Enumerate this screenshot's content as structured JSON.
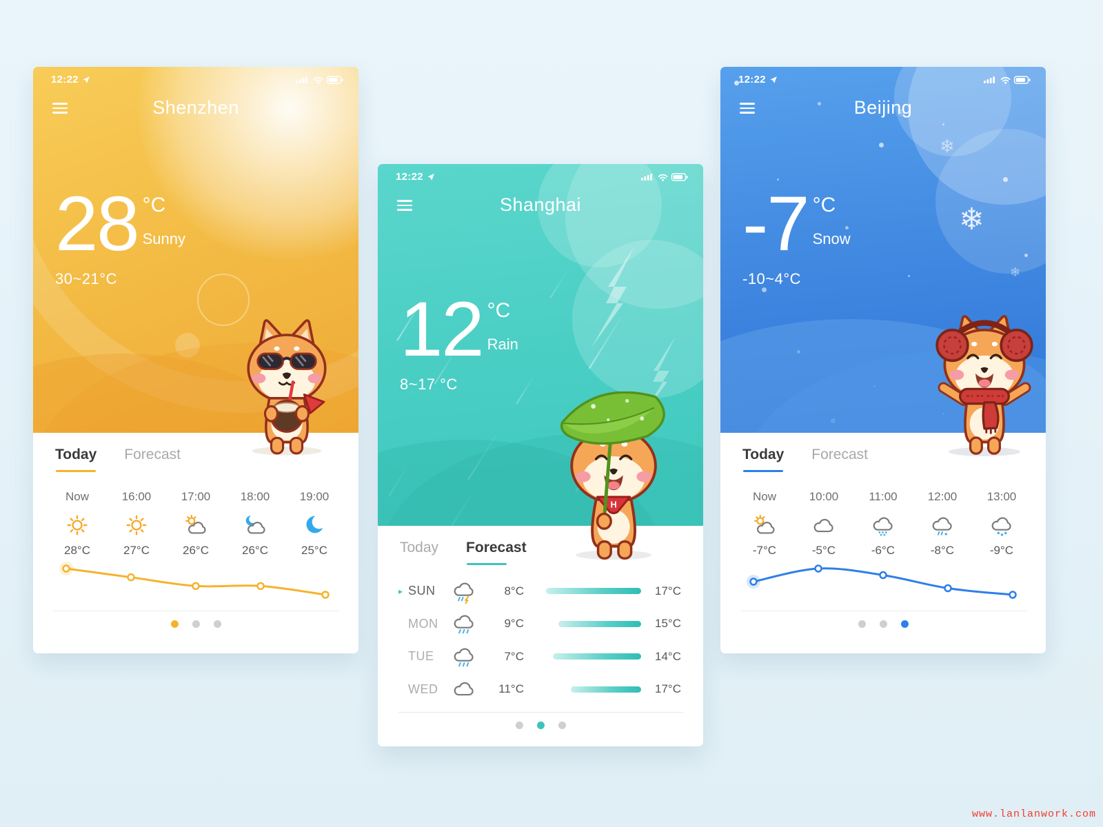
{
  "watermark": "www.lanlanwork.com",
  "phones": [
    {
      "city": "Shenzhen",
      "status": {
        "time": "12:22"
      },
      "theme": {
        "accent": "#F5B32B",
        "bg_top": "#F8CC58",
        "bg_bottom": "#EFAA36"
      },
      "current": {
        "temp": "28",
        "unit": "°C",
        "condition": "Sunny",
        "range": "30~21°C"
      },
      "tabs": {
        "today": "Today",
        "forecast": "Forecast",
        "active": "today"
      },
      "hours": [
        {
          "time": "Now",
          "icon": "sun-icon",
          "temp": "28°C"
        },
        {
          "time": "16:00",
          "icon": "sun-icon",
          "temp": "27°C"
        },
        {
          "time": "17:00",
          "icon": "partly-cloudy-icon",
          "temp": "26°C"
        },
        {
          "time": "18:00",
          "icon": "cloud-moon-icon",
          "temp": "26°C"
        },
        {
          "time": "19:00",
          "icon": "moon-icon",
          "temp": "25°C"
        }
      ],
      "chart": {
        "type": "line",
        "x": [
          "Now",
          "16:00",
          "17:00",
          "18:00",
          "19:00"
        ],
        "values": [
          28,
          27,
          26,
          26,
          25
        ]
      },
      "dots": {
        "count": 3,
        "active": 0
      },
      "mascot": "shiba-sunglasses-coconut"
    },
    {
      "city": "Shanghai",
      "status": {
        "time": "12:22"
      },
      "theme": {
        "accent": "#3EC3BC",
        "bg_top": "#5AD6CC",
        "bg_bottom": "#3FC9BE"
      },
      "current": {
        "temp": "12",
        "unit": "°C",
        "condition": "Rain",
        "range": "8~17 °C"
      },
      "tabs": {
        "today": "Today",
        "forecast": "Forecast",
        "active": "forecast"
      },
      "forecast": [
        {
          "day": "SUN",
          "icon": "storm-icon",
          "low": "8°C",
          "high": "17°C",
          "bar_pct": 100,
          "selected": true
        },
        {
          "day": "MON",
          "icon": "rain-icon",
          "low": "9°C",
          "high": "15°C",
          "bar_pct": 87,
          "selected": false
        },
        {
          "day": "TUE",
          "icon": "rain-icon",
          "low": "7°C",
          "high": "14°C",
          "bar_pct": 93,
          "selected": false
        },
        {
          "day": "WED",
          "icon": "cloud-icon",
          "low": "11°C",
          "high": "17°C",
          "bar_pct": 74,
          "selected": false
        }
      ],
      "dots": {
        "count": 3,
        "active": 1
      },
      "mascot": "shiba-leaf-umbrella"
    },
    {
      "city": "Beijing",
      "status": {
        "time": "12:22"
      },
      "theme": {
        "accent": "#2E7FE8",
        "bg_top": "#56A0EC",
        "bg_bottom": "#2F76D8"
      },
      "current": {
        "temp": "-7",
        "unit": "°C",
        "condition": "Snow",
        "range": "-10~4°C"
      },
      "tabs": {
        "today": "Today",
        "forecast": "Forecast",
        "active": "today"
      },
      "hours": [
        {
          "time": "Now",
          "icon": "partly-cloudy-icon",
          "temp": "-7°C"
        },
        {
          "time": "10:00",
          "icon": "cloud-icon",
          "temp": "-5°C"
        },
        {
          "time": "11:00",
          "icon": "snow-icon",
          "temp": "-6°C"
        },
        {
          "time": "12:00",
          "icon": "sleet-icon",
          "temp": "-8°C"
        },
        {
          "time": "13:00",
          "icon": "snow-light-icon",
          "temp": "-9°C"
        }
      ],
      "chart": {
        "type": "line",
        "x": [
          "Now",
          "10:00",
          "11:00",
          "12:00",
          "13:00"
        ],
        "values": [
          -7,
          -5,
          -6,
          -8,
          -9
        ]
      },
      "dots": {
        "count": 3,
        "active": 2
      },
      "mascot": "shiba-earmuffs-scarf"
    }
  ]
}
